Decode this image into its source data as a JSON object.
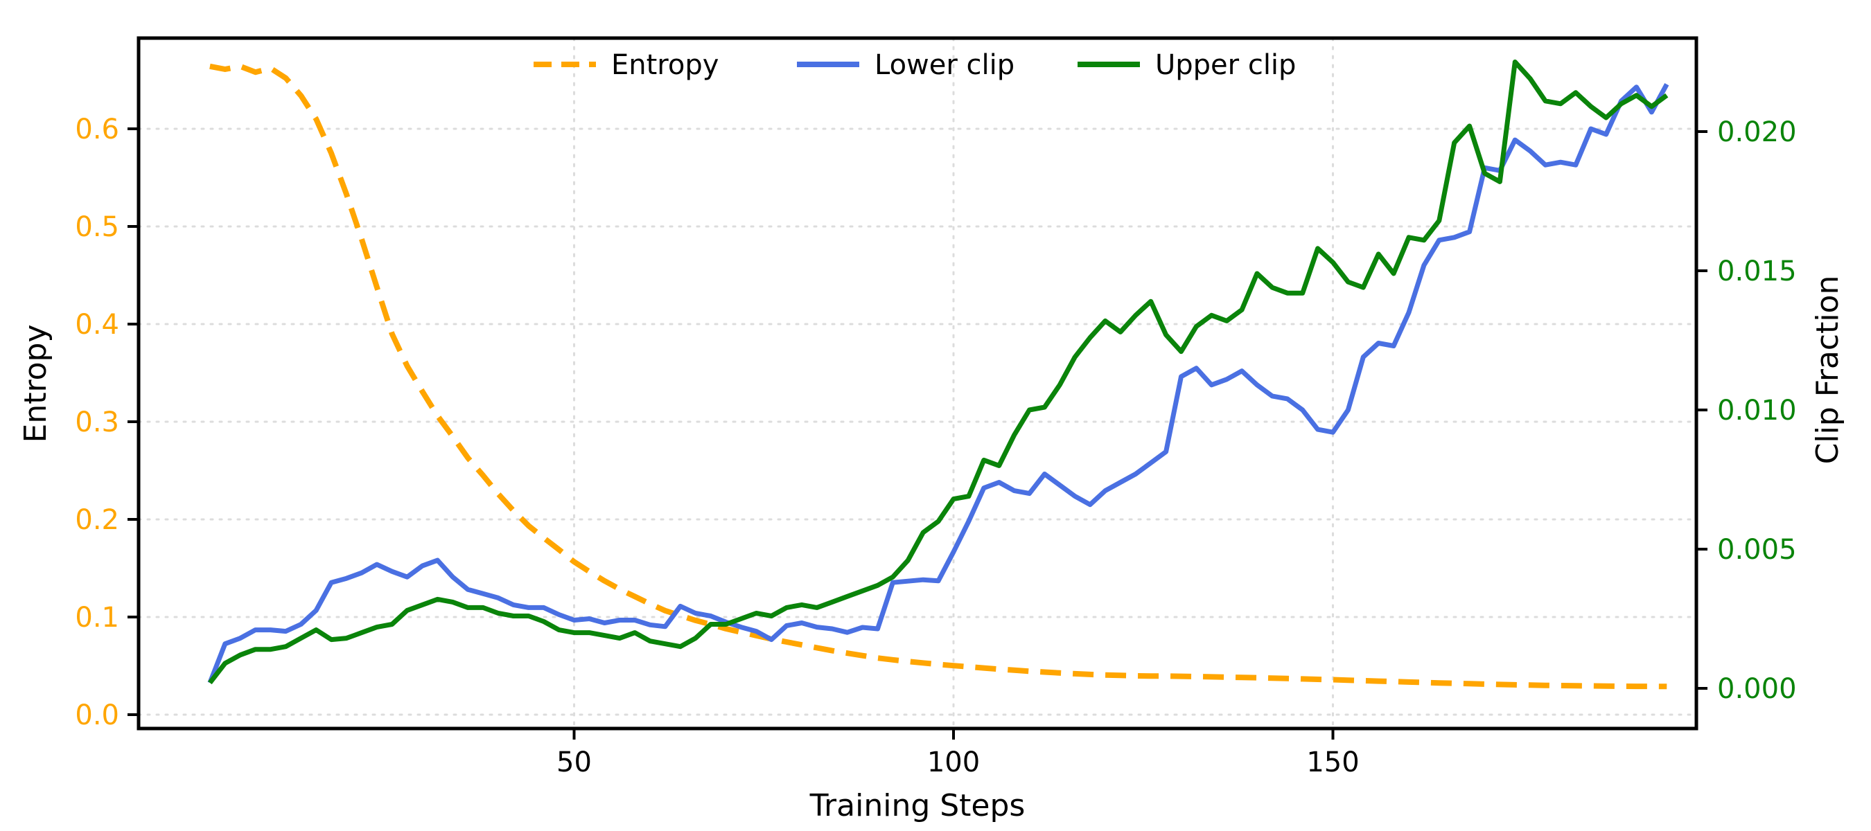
{
  "chart_data": {
    "type": "line",
    "title": "",
    "xlabel": "Training Steps",
    "ylabel_left": "Entropy",
    "ylabel_right": "Clip Fraction",
    "legend_position": "top-center",
    "grid": true,
    "colors": {
      "entropy": "#FFA500",
      "lower_clip": "#4A70E2",
      "upper_clip": "#0A840A",
      "left_tick_text": "#FFA500",
      "right_tick_text": "#0A840A",
      "x_tick_text": "#000000",
      "gridline": "#DCDCDC",
      "spine": "#000000"
    },
    "x_axis": {
      "tick_values": [
        50,
        100,
        150
      ],
      "tick_labels": [
        "50",
        "100",
        "150"
      ],
      "range": [
        -7.4,
        197.9
      ]
    },
    "left_axis": {
      "tick_values": [
        0.0,
        0.1,
        0.2,
        0.3,
        0.4,
        0.5,
        0.6
      ],
      "tick_labels": [
        "0.0",
        "0.1",
        "0.2",
        "0.3",
        "0.4",
        "0.5",
        "0.6"
      ],
      "range": [
        -0.014,
        0.693
      ]
    },
    "right_axis": {
      "tick_values": [
        0.0,
        0.005,
        0.01,
        0.015,
        0.02
      ],
      "tick_labels": [
        "0.000",
        "0.005",
        "0.010",
        "0.015",
        "0.020"
      ],
      "range": [
        -0.0014,
        0.0234
      ]
    },
    "x": [
      2,
      4,
      6,
      8,
      10,
      12,
      14,
      16,
      18,
      20,
      22,
      24,
      26,
      28,
      30,
      32,
      34,
      36,
      38,
      40,
      42,
      44,
      46,
      48,
      50,
      52,
      54,
      56,
      58,
      60,
      62,
      64,
      66,
      68,
      70,
      72,
      74,
      76,
      78,
      80,
      82,
      84,
      86,
      88,
      90,
      92,
      94,
      96,
      98,
      100,
      102,
      104,
      106,
      108,
      110,
      112,
      114,
      116,
      118,
      120,
      122,
      124,
      126,
      128,
      130,
      132,
      134,
      136,
      138,
      140,
      142,
      144,
      146,
      148,
      150,
      152,
      154,
      156,
      158,
      160,
      162,
      164,
      166,
      168,
      170,
      172,
      174,
      176,
      178,
      180,
      182,
      184,
      186,
      188,
      190,
      192,
      194
    ],
    "series": [
      {
        "name": "Entropy",
        "axis": "left",
        "style": "dashed",
        "values": [
          0.664,
          0.661,
          0.664,
          0.658,
          0.662,
          0.652,
          0.634,
          0.61,
          0.575,
          0.533,
          0.487,
          0.438,
          0.39,
          0.357,
          0.331,
          0.306,
          0.285,
          0.263,
          0.245,
          0.226,
          0.209,
          0.1935,
          0.181,
          0.169,
          0.1565,
          0.1465,
          0.137,
          0.1285,
          0.121,
          0.1135,
          0.1065,
          0.1015,
          0.0965,
          0.0925,
          0.088,
          0.0845,
          0.081,
          0.0775,
          0.0745,
          0.0715,
          0.0685,
          0.0655,
          0.063,
          0.0605,
          0.058,
          0.0562,
          0.0545,
          0.053,
          0.0515,
          0.0502,
          0.049,
          0.0478,
          0.0466,
          0.0455,
          0.0445,
          0.0436,
          0.0427,
          0.0419,
          0.0412,
          0.0406,
          0.0402,
          0.0398,
          0.0396,
          0.0395,
          0.0393,
          0.039,
          0.0387,
          0.0384,
          0.0381,
          0.0378,
          0.0374,
          0.037,
          0.0366,
          0.0362,
          0.0358,
          0.0353,
          0.0348,
          0.0343,
          0.0339,
          0.0334,
          0.033,
          0.0325,
          0.0321,
          0.0317,
          0.0313,
          0.0309,
          0.0306,
          0.0303,
          0.03,
          0.0298,
          0.0296,
          0.0294,
          0.0292,
          0.0291,
          0.029,
          0.029,
          0.0289
        ]
      },
      {
        "name": "Lower clip",
        "axis": "right",
        "style": "solid",
        "values": [
          0.0002,
          0.0016,
          0.0018,
          0.0021,
          0.0021,
          0.00205,
          0.0023,
          0.0028,
          0.0038,
          0.00395,
          0.00415,
          0.00445,
          0.0042,
          0.004,
          0.0044,
          0.0046,
          0.004,
          0.00355,
          0.0034,
          0.00325,
          0.003,
          0.0029,
          0.0029,
          0.00265,
          0.00245,
          0.0025,
          0.00235,
          0.00245,
          0.00245,
          0.00228,
          0.00222,
          0.00295,
          0.0027,
          0.0026,
          0.00238,
          0.0022,
          0.00205,
          0.00175,
          0.00225,
          0.00235,
          0.0022,
          0.00214,
          0.00201,
          0.00219,
          0.00214,
          0.0038,
          0.00385,
          0.0039,
          0.00386,
          0.0049,
          0.006,
          0.0072,
          0.0074,
          0.0071,
          0.007,
          0.0077,
          0.0073,
          0.0069,
          0.0066,
          0.0071,
          0.0074,
          0.0077,
          0.0081,
          0.0085,
          0.0112,
          0.0115,
          0.0109,
          0.0111,
          0.0114,
          0.0109,
          0.0105,
          0.0104,
          0.01,
          0.0093,
          0.0092,
          0.01,
          0.0119,
          0.0124,
          0.0123,
          0.0135,
          0.0152,
          0.0161,
          0.0162,
          0.0164,
          0.0187,
          0.0186,
          0.0197,
          0.0193,
          0.0188,
          0.0189,
          0.0188,
          0.0201,
          0.0199,
          0.0211,
          0.0216,
          0.0207,
          0.0217
        ]
      },
      {
        "name": "Upper clip",
        "axis": "right",
        "style": "solid",
        "values": [
          0.0002,
          0.0009,
          0.0012,
          0.0014,
          0.0014,
          0.0015,
          0.0018,
          0.0021,
          0.00175,
          0.0018,
          0.002,
          0.0022,
          0.0023,
          0.0028,
          0.003,
          0.0032,
          0.0031,
          0.0029,
          0.0029,
          0.0027,
          0.0026,
          0.0026,
          0.0024,
          0.0021,
          0.002,
          0.002,
          0.0019,
          0.0018,
          0.002,
          0.0017,
          0.0016,
          0.0015,
          0.0018,
          0.0023,
          0.0023,
          0.0025,
          0.0027,
          0.0026,
          0.0029,
          0.003,
          0.0029,
          0.0031,
          0.0033,
          0.0035,
          0.0037,
          0.004,
          0.0046,
          0.0056,
          0.006,
          0.0068,
          0.0069,
          0.0082,
          0.008,
          0.0091,
          0.01,
          0.0101,
          0.0109,
          0.0119,
          0.0126,
          0.0132,
          0.0128,
          0.0134,
          0.0139,
          0.0127,
          0.0121,
          0.013,
          0.0134,
          0.0132,
          0.0136,
          0.0149,
          0.0144,
          0.0142,
          0.0142,
          0.0158,
          0.0153,
          0.0146,
          0.0144,
          0.0156,
          0.0149,
          0.0162,
          0.0161,
          0.0168,
          0.0196,
          0.0202,
          0.0185,
          0.0182,
          0.0225,
          0.0219,
          0.0211,
          0.021,
          0.0214,
          0.0209,
          0.0205,
          0.021,
          0.0213,
          0.0209,
          0.0213
        ]
      }
    ],
    "legend": [
      "Entropy",
      "Lower clip",
      "Upper clip"
    ]
  }
}
